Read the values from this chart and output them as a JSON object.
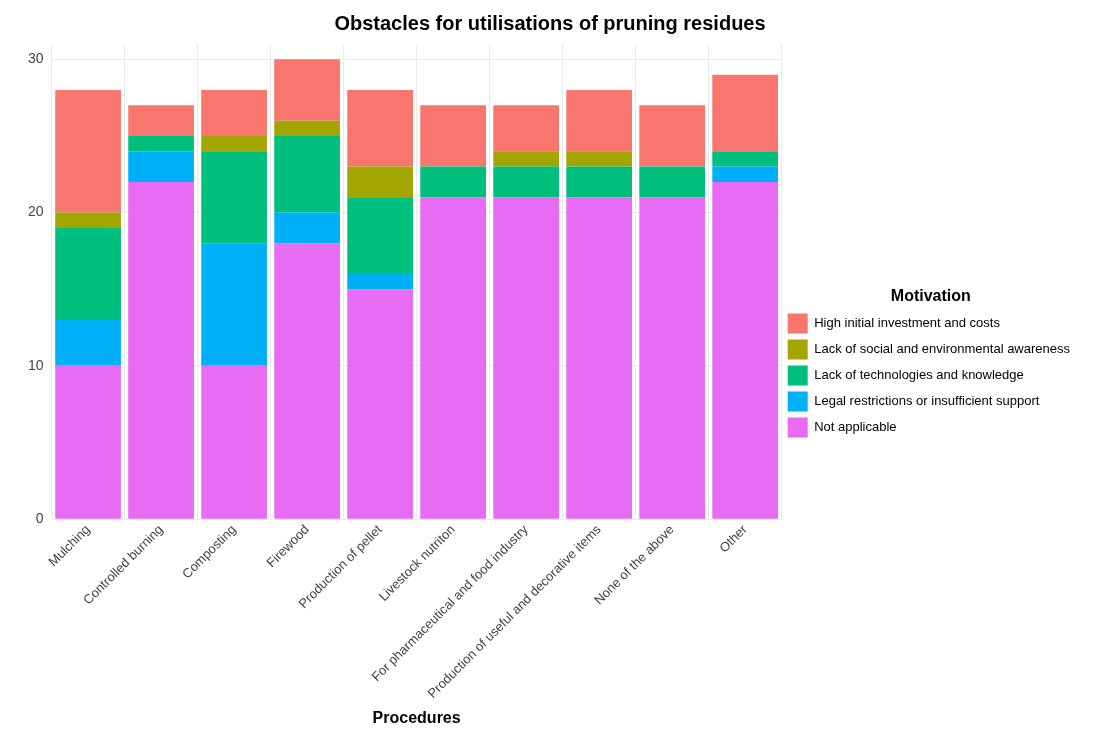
{
  "chart_data": {
    "type": "bar",
    "title": "Obstacles for utilisations of pruning residues",
    "xlabel": "Procedures",
    "legend_title": "Motivation",
    "stacked": true,
    "legend": "right",
    "grid": true,
    "categories": [
      "Mulching",
      "Controlled burning",
      "Composting",
      "Firewood",
      "Production of pellet",
      "Livestock nutriton",
      "For pharmaceutical and food industry",
      "Production of useful and decorative items",
      "None of the above",
      "Other"
    ],
    "series": [
      {
        "name": "Not applicable",
        "color": "#e76bf3",
        "values": [
          10,
          22,
          10,
          18,
          15,
          21,
          21,
          21,
          21,
          22
        ]
      },
      {
        "name": "Legal restrictions or insufficient support",
        "color": "#00b0f6",
        "values": [
          3,
          2,
          8,
          2,
          1,
          0,
          0,
          0,
          0,
          1
        ]
      },
      {
        "name": "Lack of technologies and knowledge",
        "color": "#00bf7d",
        "values": [
          6,
          1,
          6,
          5,
          5,
          2,
          2,
          2,
          2,
          1
        ]
      },
      {
        "name": "Lack of social and environmental awareness",
        "color": "#a3a500",
        "values": [
          1,
          0,
          1,
          1,
          2,
          0,
          1,
          1,
          0,
          0
        ]
      },
      {
        "name": "High initial investment and costs",
        "color": "#f8766d",
        "values": [
          8,
          2,
          3,
          4,
          5,
          4,
          3,
          4,
          4,
          5
        ]
      }
    ],
    "ylim": [
      0,
      31
    ],
    "yticks": [
      0,
      10,
      20,
      30
    ]
  }
}
